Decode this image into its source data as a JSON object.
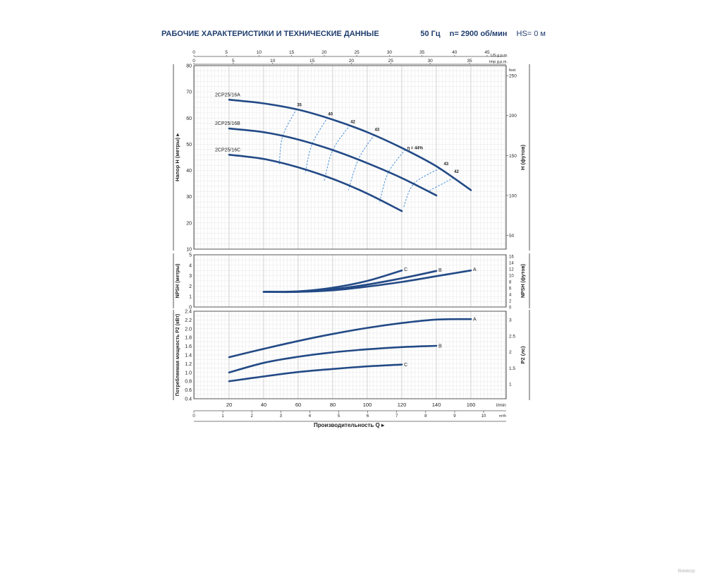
{
  "header": {
    "title": "РАБОЧИЕ ХАРАКТЕРИСТИКИ И ТЕХНИЧЕСКИЕ ДАННЫЕ",
    "frequency": "50 Гц",
    "speed": "n= 2900 об/мин",
    "hs": "HS= 0 м"
  },
  "watermark": "Вимкор",
  "colors": {
    "curve": "#234a86",
    "grid": "#c8c8c8",
    "axis": "#555555",
    "dashed": "#4a90d9",
    "text": "#222222",
    "title": "#1f3d6e"
  },
  "chart_data": [
    {
      "type": "line",
      "panel": "head",
      "ylabel": "Напор H (метры)",
      "ylabel_right": "H (футов)",
      "ylim": [
        10,
        80
      ],
      "yticks": [
        10,
        20,
        30,
        40,
        50,
        60,
        70,
        80
      ],
      "right_unit": "feet",
      "right_ticks": [
        50,
        100,
        150,
        200,
        250
      ],
      "top_axis_us": {
        "unit": "US g.p.m.",
        "ticks": [
          0,
          5,
          10,
          15,
          20,
          25,
          30,
          35,
          40,
          45
        ]
      },
      "top_axis_imp": {
        "unit": "Imp g.p.m.",
        "ticks": [
          0,
          5,
          10,
          15,
          20,
          25,
          30,
          35
        ]
      },
      "series": [
        {
          "name": "2CP25/16A",
          "x": [
            20,
            40,
            60,
            80,
            100,
            120,
            140,
            160
          ],
          "y": [
            67,
            65.6,
            63.2,
            59.4,
            54.6,
            48.6,
            41.6,
            32.5
          ]
        },
        {
          "name": "2CP25/16B",
          "x": [
            20,
            40,
            60,
            80,
            100,
            120,
            140
          ],
          "y": [
            56,
            54.6,
            51.8,
            47.8,
            42.8,
            37.1,
            30.5
          ]
        },
        {
          "name": "2CP25/16C",
          "x": [
            20,
            40,
            60,
            80,
            100,
            120
          ],
          "y": [
            46,
            44.4,
            41.2,
            36.8,
            31.2,
            24.5
          ]
        }
      ],
      "efficiency_labels": [
        "35",
        "40",
        "42",
        "43",
        "η = 44%",
        "43",
        "42"
      ],
      "efficiency_points": [
        {
          "label": "35",
          "x": 59,
          "y": 63.5,
          "points": [
            [
              59,
              63.5
            ],
            [
              51,
              53
            ],
            [
              49,
              42
            ]
          ]
        },
        {
          "label": "40",
          "x": 77,
          "y": 60,
          "points": [
            [
              77,
              60.2
            ],
            [
              68,
              50
            ],
            [
              64,
              39
            ]
          ]
        },
        {
          "label": "42",
          "x": 90,
          "y": 57,
          "points": [
            [
              90,
              57.3
            ],
            [
              80,
              47.8
            ],
            [
              75,
              36
            ]
          ]
        },
        {
          "label": "43",
          "x": 104,
          "y": 54,
          "points": [
            [
              104,
              53.6
            ],
            [
              95,
              44.5
            ],
            [
              89,
              32.5
            ]
          ]
        },
        {
          "label": "η = 44%",
          "x": 126,
          "y": 47,
          "points": [
            [
              122,
              48
            ],
            [
              112,
              39
            ],
            [
              107,
              27.5
            ]
          ]
        },
        {
          "label": "43",
          "x": 144,
          "y": 41,
          "points": [
            [
              142,
              40.8
            ],
            [
              127,
              35
            ],
            [
              121,
              26
            ]
          ]
        },
        {
          "label": "42",
          "x": 150,
          "y": 38,
          "points": [
            [
              150,
              37.2
            ],
            [
              135,
              32
            ]
          ]
        }
      ]
    },
    {
      "type": "line",
      "panel": "npsh",
      "ylabel": "NPSH (метры)",
      "ylabel_right": "NPSH (футов)",
      "ylim": [
        0,
        5
      ],
      "yticks": [
        0,
        1,
        2,
        3,
        4,
        5
      ],
      "right_ticks": [
        0,
        2,
        4,
        6,
        8,
        10,
        12,
        14,
        16
      ],
      "series": [
        {
          "name": "A",
          "x": [
            40,
            60,
            80,
            100,
            120,
            140,
            160
          ],
          "y": [
            1.45,
            1.45,
            1.6,
            1.95,
            2.4,
            2.95,
            3.5
          ]
        },
        {
          "name": "B",
          "x": [
            40,
            60,
            80,
            100,
            120,
            140
          ],
          "y": [
            1.45,
            1.45,
            1.7,
            2.15,
            2.75,
            3.45
          ]
        },
        {
          "name": "C",
          "x": [
            40,
            60,
            80,
            100,
            120
          ],
          "y": [
            1.45,
            1.5,
            1.85,
            2.5,
            3.5
          ]
        }
      ]
    },
    {
      "type": "line",
      "panel": "power",
      "ylabel": "Потребляемая мощность P2 (кВт)",
      "ylabel_right": "P2 (лс)",
      "ylim": [
        0.4,
        2.4
      ],
      "yticks": [
        0.4,
        0.6,
        0.8,
        1.0,
        1.2,
        1.4,
        1.6,
        1.8,
        2.0,
        2.2,
        2.4
      ],
      "right_ticks": [
        "1",
        "1.5",
        "2",
        "2.5",
        "3"
      ],
      "xlabel": "Производительность Q",
      "xticks_lmin": [
        20,
        40,
        60,
        80,
        100,
        120,
        140,
        160
      ],
      "x_unit": "l/min",
      "xticks_m3h": [
        0,
        1,
        2,
        3,
        4,
        5,
        6,
        7,
        8,
        9,
        10
      ],
      "x_unit_m3h": "m³/h",
      "series": [
        {
          "name": "A",
          "x": [
            20,
            40,
            60,
            80,
            100,
            120,
            140,
            160
          ],
          "y": [
            1.35,
            1.54,
            1.72,
            1.88,
            2.02,
            2.13,
            2.21,
            2.22
          ]
        },
        {
          "name": "B",
          "x": [
            20,
            40,
            60,
            80,
            100,
            120,
            140
          ],
          "y": [
            1.0,
            1.22,
            1.36,
            1.46,
            1.53,
            1.58,
            1.61
          ]
        },
        {
          "name": "C",
          "x": [
            20,
            40,
            60,
            80,
            100,
            120
          ],
          "y": [
            0.8,
            0.91,
            1.01,
            1.08,
            1.14,
            1.18
          ]
        }
      ]
    }
  ]
}
